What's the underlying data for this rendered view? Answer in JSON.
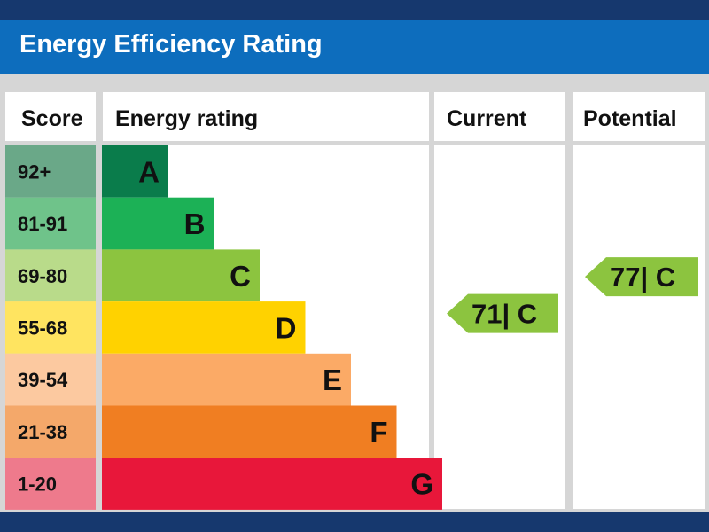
{
  "title": "Energy Efficiency Rating",
  "headers": {
    "score": "Score",
    "rating": "Energy rating",
    "current": "Current",
    "potential": "Potential"
  },
  "bands": [
    {
      "score": "92+",
      "letter": "A",
      "bar_color": "#0a7c4b",
      "score_color": "#6aa888"
    },
    {
      "score": "81-91",
      "letter": "B",
      "bar_color": "#1cb156",
      "score_color": "#6fc38a"
    },
    {
      "score": "69-80",
      "letter": "C",
      "bar_color": "#8cc43f",
      "score_color": "#b9db8a"
    },
    {
      "score": "55-68",
      "letter": "D",
      "bar_color": "#ffd200",
      "score_color": "#ffe460"
    },
    {
      "score": "39-54",
      "letter": "E",
      "bar_color": "#fbaa66",
      "score_color": "#fcc9a0"
    },
    {
      "score": "21-38",
      "letter": "F",
      "bar_color": "#f07e22",
      "score_color": "#f4a86a"
    },
    {
      "score": "1-20",
      "letter": "G",
      "bar_color": "#e8173a",
      "score_color": "#ee7a8c"
    }
  ],
  "current": {
    "label": "71| C",
    "value": 71,
    "band": "C",
    "color": "#8cc43f"
  },
  "potential": {
    "label": "77| C",
    "value": 77,
    "band": "C",
    "color": "#8cc43f"
  },
  "chart_data": {
    "type": "table",
    "title": "Energy Efficiency Rating",
    "columns": [
      "Score",
      "Energy rating",
      "Current",
      "Potential"
    ],
    "rows": [
      [
        "92+",
        "A"
      ],
      [
        "81-91",
        "B"
      ],
      [
        "69-80",
        "C"
      ],
      [
        "55-68",
        "D"
      ],
      [
        "39-54",
        "E"
      ],
      [
        "21-38",
        "F"
      ],
      [
        "1-20",
        "G"
      ]
    ],
    "current": 71,
    "potential": 77,
    "current_band": "C",
    "potential_band": "C"
  },
  "colors": {
    "grid": "#d6d6d6",
    "title_bar": "#0d6dbd",
    "frame": "#16386e"
  }
}
